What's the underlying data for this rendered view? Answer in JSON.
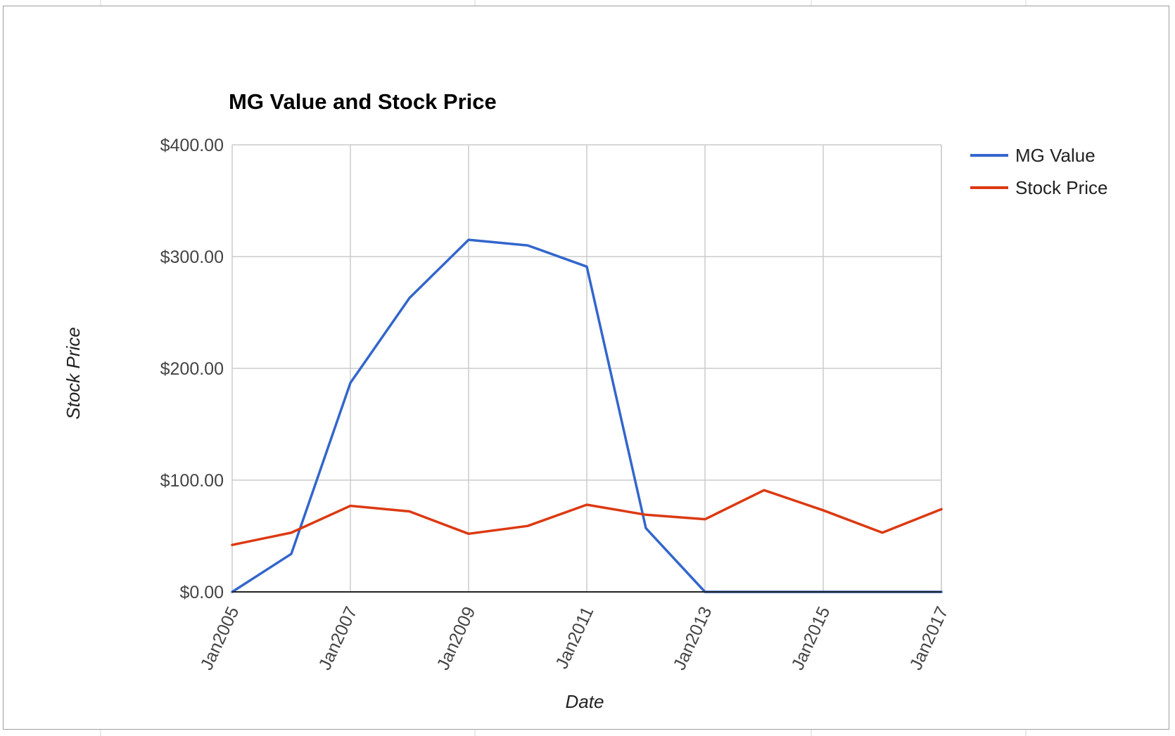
{
  "chart_data": {
    "type": "line",
    "title": "MG Value and Stock Price",
    "xlabel": "Date",
    "ylabel": "Stock Price",
    "x": [
      "2005-01",
      "2006-01",
      "2007-01",
      "2008-01",
      "2009-01",
      "2010-01",
      "2011-01",
      "2012-01",
      "2013-01",
      "2014-01",
      "2015-01",
      "2016-01",
      "2017-01"
    ],
    "x_tick_labels": [
      "Jan2005",
      "Jan2007",
      "Jan2009",
      "Jan2011",
      "Jan2013",
      "Jan2015",
      "Jan2017"
    ],
    "y_tick_labels": [
      "$0.00",
      "$100.00",
      "$200.00",
      "$300.00",
      "$400.00"
    ],
    "ylim": [
      0,
      400
    ],
    "grid": true,
    "legend_position": "right",
    "series": [
      {
        "name": "MG Value",
        "color": "#3366cc",
        "values": [
          0,
          34,
          187,
          263,
          315,
          310,
          291,
          57,
          0,
          0,
          0,
          0,
          0
        ]
      },
      {
        "name": "Stock Price",
        "color": "#dc3912",
        "values": [
          42,
          53,
          77,
          72,
          52,
          59,
          78,
          69,
          65,
          91,
          73,
          53,
          74
        ]
      }
    ]
  }
}
